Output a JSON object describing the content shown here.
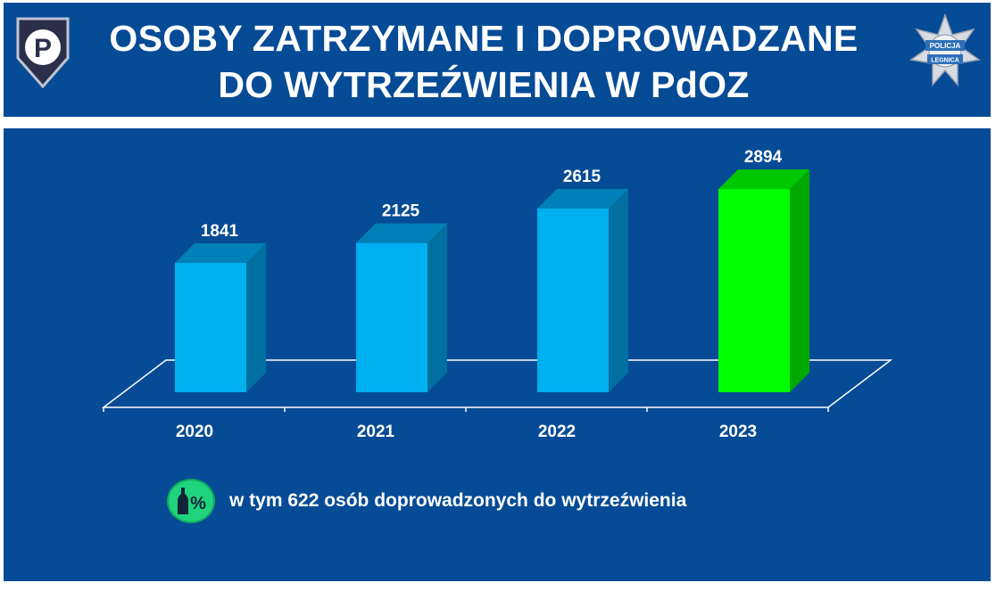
{
  "header": {
    "title_line1": "OSOBY ZATRZYMANE I DOPROWADZANE",
    "title_line2": "DO WYTRZEŹWIENIA W PdOZ",
    "logo_text_top": "POLICJA",
    "logo_text_bottom": "LEGNICA"
  },
  "chart_data": {
    "type": "bar",
    "title": "",
    "xlabel": "",
    "ylabel": "",
    "categories": [
      "2020",
      "2021",
      "2022",
      "2023"
    ],
    "values": [
      1841,
      2125,
      2615,
      2894
    ],
    "ylim": [
      0,
      3000
    ],
    "grid": false,
    "legend": "none",
    "style": "3d",
    "colors": {
      "default_front": "#00b0f0",
      "default_side": "#0070a0",
      "default_top": "#0080b8",
      "highlight_front": "#00ff00",
      "highlight_side": "#00a800",
      "highlight_top": "#00c800"
    },
    "highlight_index": 3
  },
  "note": {
    "text": "w tym 622 osób doprowadzonych do wytrzeźwienia",
    "icon": "bottle-percent-icon",
    "icon_label": "%"
  },
  "colors": {
    "background_blue": "#064b96",
    "note_icon_green": "#1fd47d"
  }
}
